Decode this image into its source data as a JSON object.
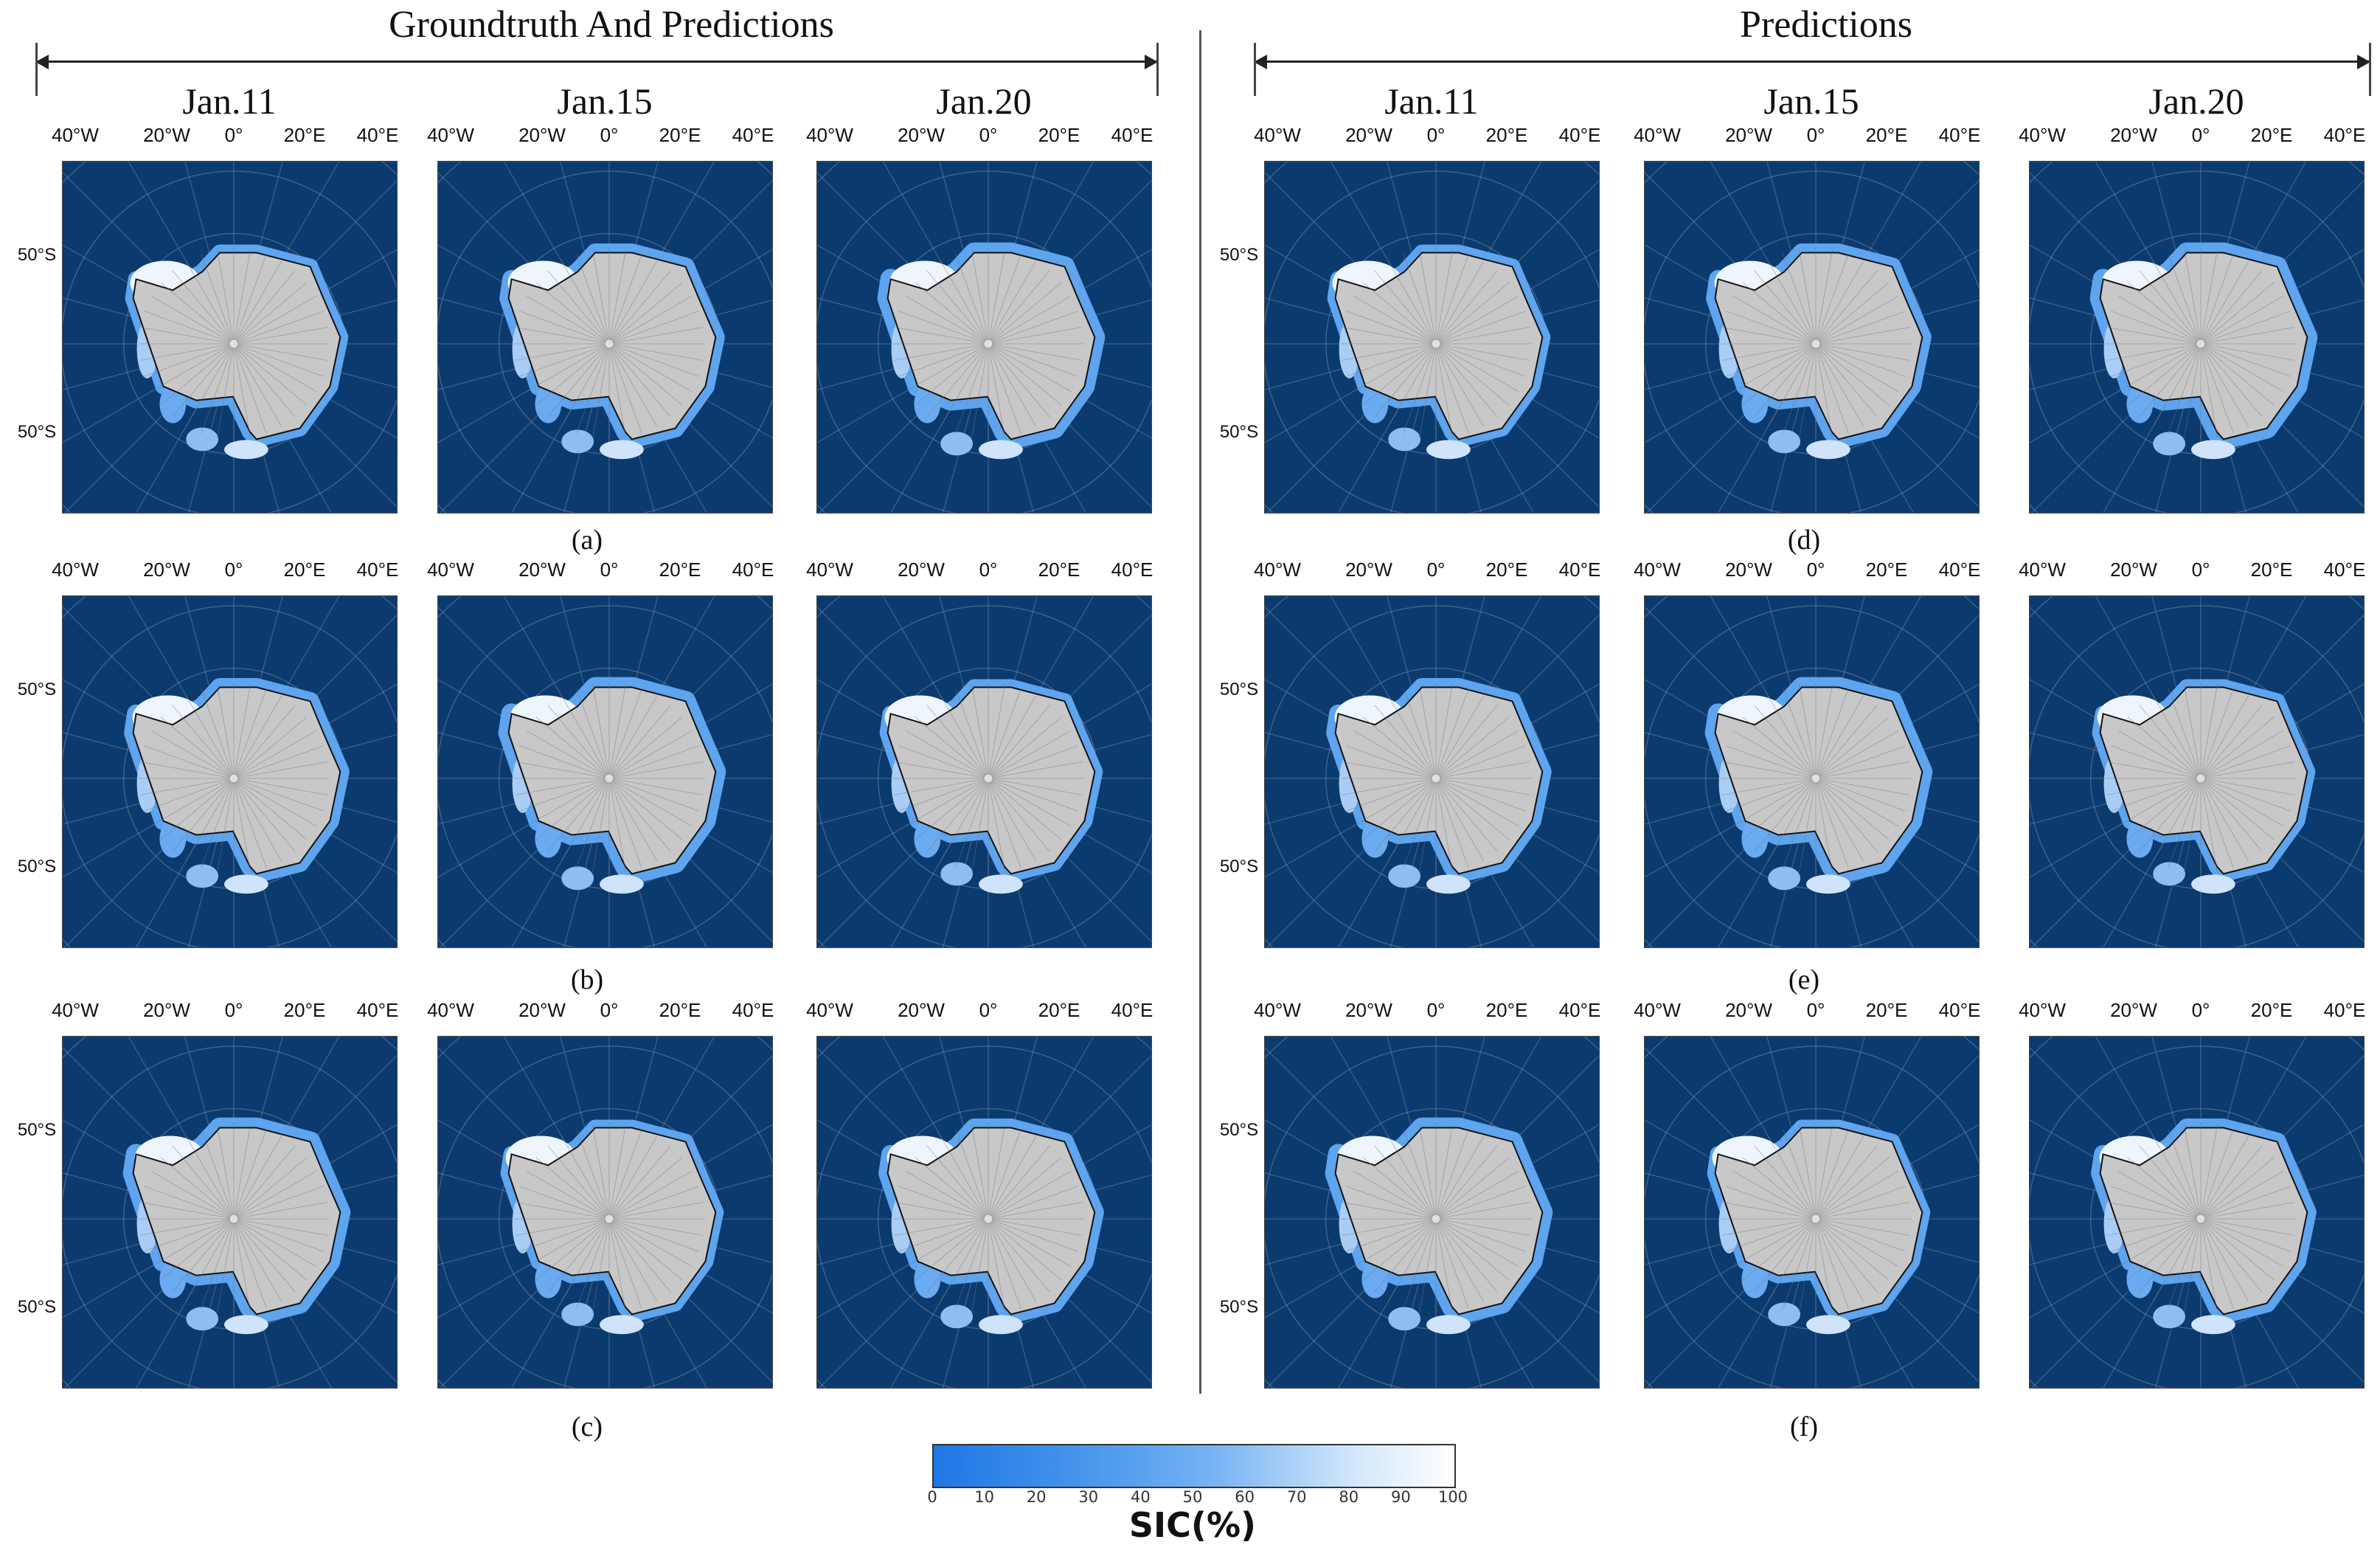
{
  "chart_data": {
    "type": "heatmap",
    "title_left": "Groundtruth And Predictions",
    "title_right": "Predictions",
    "dates": [
      "Jan.11",
      "Jan.15",
      "Jan.20"
    ],
    "lon_ticks": [
      "40°W",
      "20°W",
      "0°",
      "20°E",
      "40°E"
    ],
    "lat_ticks": [
      "50°S",
      "50°S"
    ],
    "captions": [
      "(a)",
      "(b)",
      "(c)",
      "(d)",
      "(e)",
      "(f)"
    ],
    "colorbar": {
      "label": "SIC(%)",
      "ticks": [
        "0",
        "10",
        "20",
        "30",
        "40",
        "50",
        "60",
        "70",
        "80",
        "90",
        "100"
      ],
      "range": [
        0,
        100
      ],
      "colors": [
        "#1f77e6",
        "#ffffff"
      ]
    },
    "ocean_color": "#0b3a6e",
    "land_color": "#c8c8c8"
  }
}
